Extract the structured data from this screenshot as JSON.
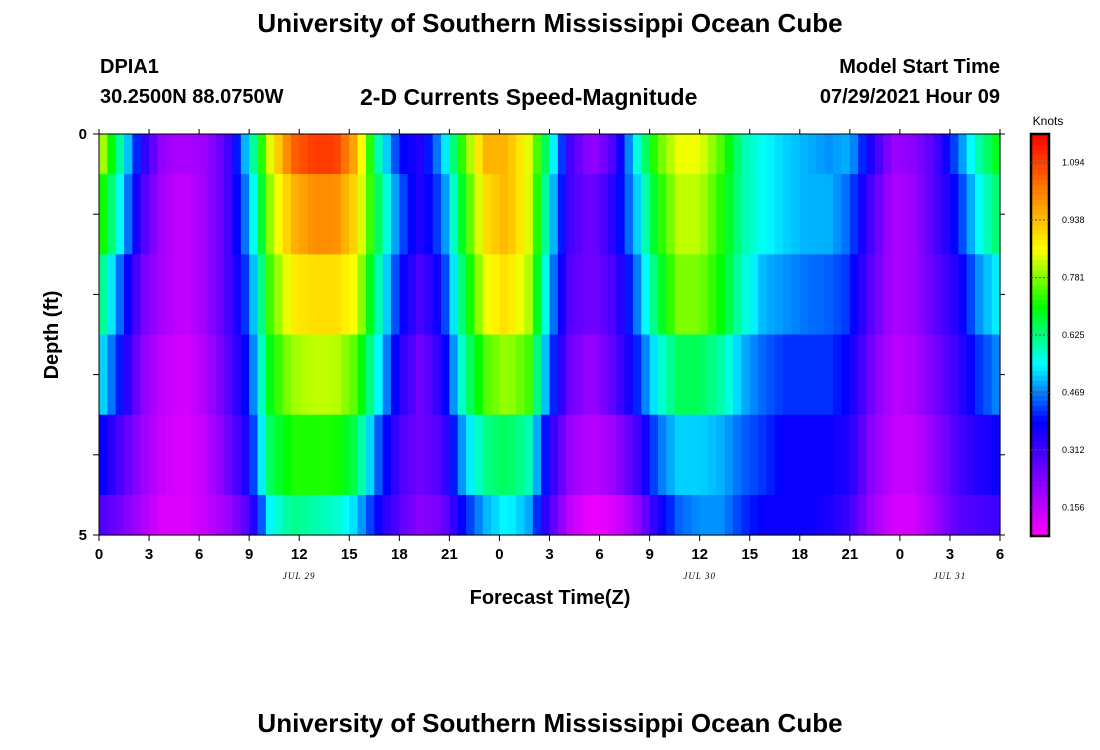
{
  "header": {
    "title": "University of Southern Mississippi Ocean Cube",
    "station_id": "DPIA1",
    "coordinates": "30.2500N  88.0750W",
    "chart_title": "2-D Currents Speed-Magnitude",
    "model_start_label": "Model Start Time",
    "model_start_value": "07/29/2021 Hour 09"
  },
  "footer": {
    "title": "University of Southern Mississippi Ocean Cube"
  },
  "chart_data": {
    "type": "heatmap",
    "title": "2-D Currents Speed-Magnitude",
    "xlabel": "Forecast Time(Z)",
    "ylabel": "Depth (ft)",
    "xlim": [
      0,
      54
    ],
    "ylim": [
      0,
      5
    ],
    "x_tick_labels": [
      "0",
      "3",
      "6",
      "9",
      "12",
      "15",
      "18",
      "21",
      "0",
      "3",
      "6",
      "9",
      "12",
      "15",
      "18",
      "21",
      "0",
      "3",
      "6"
    ],
    "y_tick_labels": [
      "0",
      "5"
    ],
    "date_labels": [
      {
        "label": "JUL 29",
        "hour": 12
      },
      {
        "label": "JUL 30",
        "hour": 36
      },
      {
        "label": "JUL 31",
        "hour": 51
      }
    ],
    "colorbar": {
      "label": "Knots",
      "min": 0.078,
      "max": 1.172,
      "ticks": [
        "1.094",
        "0.938",
        "0.781",
        "0.625",
        "0.469",
        "0.312",
        "0.156"
      ],
      "stops": [
        "#ff00ff",
        "#8000ff",
        "#0000ff",
        "#00ffff",
        "#00ff00",
        "#ffff00",
        "#ff8000",
        "#ff0000"
      ]
    },
    "depth_bands_ft": [
      [
        0,
        0.5
      ],
      [
        0.5,
        1.5
      ],
      [
        1.5,
        2.5
      ],
      [
        2.5,
        3.5
      ],
      [
        3.5,
        4.5
      ],
      [
        4.5,
        5
      ]
    ],
    "hour_step": 0.5,
    "series": [
      {
        "name": "0-0.5 ft",
        "values": [
          0.85,
          0.6,
          0.35,
          0.2,
          0.18,
          0.2,
          0.3,
          0.55,
          0.85,
          1.05,
          1.1,
          1.1,
          0.95,
          0.6,
          0.4,
          0.35,
          0.5,
          0.75,
          0.95,
          0.95,
          0.85,
          0.6,
          0.3,
          0.2,
          0.3,
          0.55,
          0.75,
          0.85,
          0.85,
          0.75,
          0.6,
          0.55,
          0.52,
          0.5,
          0.48,
          0.5,
          0.35,
          0.2,
          0.22,
          0.3,
          0.45,
          0.6,
          0.7
        ]
      },
      {
        "name": "0.5-1.5 ft",
        "values": [
          0.75,
          0.55,
          0.3,
          0.18,
          0.15,
          0.2,
          0.3,
          0.5,
          0.8,
          0.95,
          1.0,
          1.0,
          0.9,
          0.65,
          0.45,
          0.35,
          0.45,
          0.7,
          0.9,
          0.95,
          0.85,
          0.55,
          0.3,
          0.25,
          0.35,
          0.5,
          0.7,
          0.82,
          0.82,
          0.72,
          0.6,
          0.55,
          0.52,
          0.5,
          0.5,
          0.45,
          0.3,
          0.18,
          0.2,
          0.3,
          0.4,
          0.55,
          0.65
        ]
      },
      {
        "name": "1.5-2.5 ft",
        "values": [
          0.65,
          0.45,
          0.25,
          0.18,
          0.15,
          0.2,
          0.3,
          0.45,
          0.75,
          0.88,
          0.9,
          0.9,
          0.85,
          0.6,
          0.4,
          0.3,
          0.4,
          0.65,
          0.85,
          0.9,
          0.82,
          0.5,
          0.28,
          0.25,
          0.3,
          0.45,
          0.65,
          0.78,
          0.78,
          0.7,
          0.58,
          0.5,
          0.48,
          0.46,
          0.45,
          0.42,
          0.28,
          0.18,
          0.2,
          0.28,
          0.35,
          0.48,
          0.55
        ]
      },
      {
        "name": "2.5-3.5 ft",
        "values": [
          0.55,
          0.4,
          0.22,
          0.15,
          0.13,
          0.18,
          0.28,
          0.42,
          0.7,
          0.8,
          0.82,
          0.82,
          0.75,
          0.55,
          0.35,
          0.25,
          0.35,
          0.6,
          0.75,
          0.8,
          0.75,
          0.45,
          0.25,
          0.2,
          0.28,
          0.4,
          0.55,
          0.65,
          0.65,
          0.6,
          0.5,
          0.45,
          0.42,
          0.42,
          0.42,
          0.38,
          0.25,
          0.16,
          0.18,
          0.25,
          0.32,
          0.42,
          0.48
        ]
      },
      {
        "name": "3.5-4.5 ft",
        "values": [
          0.4,
          0.3,
          0.2,
          0.14,
          0.12,
          0.16,
          0.25,
          0.38,
          0.65,
          0.72,
          0.72,
          0.72,
          0.65,
          0.45,
          0.3,
          0.25,
          0.3,
          0.5,
          0.62,
          0.65,
          0.6,
          0.35,
          0.2,
          0.16,
          0.2,
          0.3,
          0.45,
          0.52,
          0.52,
          0.5,
          0.45,
          0.42,
          0.38,
          0.38,
          0.38,
          0.35,
          0.22,
          0.15,
          0.15,
          0.22,
          0.3,
          0.35,
          0.38
        ]
      },
      {
        "name": "4.5-5 ft",
        "values": [
          0.3,
          0.25,
          0.18,
          0.12,
          0.12,
          0.15,
          0.2,
          0.3,
          0.55,
          0.62,
          0.6,
          0.58,
          0.52,
          0.38,
          0.28,
          0.22,
          0.25,
          0.4,
          0.5,
          0.55,
          0.5,
          0.3,
          0.15,
          0.1,
          0.12,
          0.2,
          0.35,
          0.45,
          0.48,
          0.48,
          0.42,
          0.38,
          0.38,
          0.38,
          0.36,
          0.32,
          0.2,
          0.13,
          0.13,
          0.2,
          0.28,
          0.3,
          0.32
        ]
      }
    ]
  }
}
